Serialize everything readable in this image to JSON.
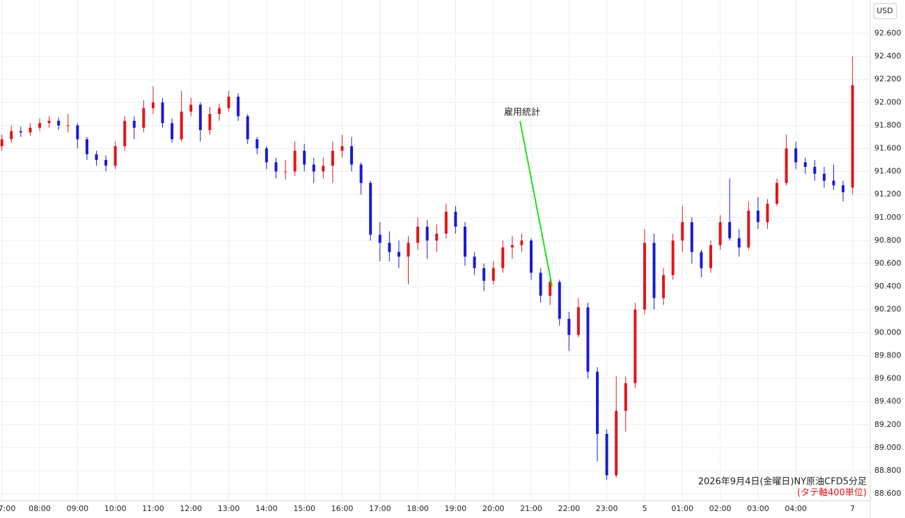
{
  "chart_data": {
    "type": "candlestick",
    "annotation": "雇用統計",
    "caption": "2026年9月4日(金曜日)NY原油CFD5分足",
    "caption_note": "(タテ軸400単位)",
    "currency": "USD",
    "up_color": "#e3141a",
    "down_color": "#1a1ad6",
    "grid": true,
    "ylim": [
      88.54,
      92.89
    ],
    "yticks": [
      {
        "value": 88.6,
        "label": "88.600"
      },
      {
        "value": 88.8,
        "label": "88.800"
      },
      {
        "value": 89,
        "label": "89.000"
      },
      {
        "value": 89.2,
        "label": "89.200"
      },
      {
        "value": 89.4,
        "label": "89.400"
      },
      {
        "value": 89.6,
        "label": "89.600"
      },
      {
        "value": 89.8,
        "label": "89.800"
      },
      {
        "value": 90,
        "label": "90.000"
      },
      {
        "value": 90.2,
        "label": "90.200"
      },
      {
        "value": 90.4,
        "label": "90.400"
      },
      {
        "value": 90.6,
        "label": "90.600"
      },
      {
        "value": 90.8,
        "label": "90.800"
      },
      {
        "value": 91,
        "label": "91.000"
      },
      {
        "value": 91.2,
        "label": "91.200"
      },
      {
        "value": 91.4,
        "label": "91.400"
      },
      {
        "value": 91.6,
        "label": "91.600"
      },
      {
        "value": 91.8,
        "label": "91.800"
      },
      {
        "value": 92,
        "label": "92.000"
      },
      {
        "value": 92.2,
        "label": "92.200"
      },
      {
        "value": 92.4,
        "label": "92.400"
      },
      {
        "value": 92.6,
        "label": "92.600"
      }
    ],
    "xlim": [
      -0.2,
      91.5
    ],
    "xticks": [
      {
        "value": 0,
        "label": "7:00"
      },
      {
        "value": 4,
        "label": "08:00"
      },
      {
        "value": 8,
        "label": "09:00"
      },
      {
        "value": 12,
        "label": "10:00"
      },
      {
        "value": 16,
        "label": "11:00"
      },
      {
        "value": 20,
        "label": "12:00"
      },
      {
        "value": 24,
        "label": "13:00"
      },
      {
        "value": 28,
        "label": "14:00"
      },
      {
        "value": 32,
        "label": "15:00"
      },
      {
        "value": 36,
        "label": "16:00"
      },
      {
        "value": 40,
        "label": "17:00"
      },
      {
        "value": 44,
        "label": "18:00"
      },
      {
        "value": 48,
        "label": "19:00"
      },
      {
        "value": 52,
        "label": "20:00"
      },
      {
        "value": 56,
        "label": "21:00"
      },
      {
        "value": 60,
        "label": "22:00"
      },
      {
        "value": 64,
        "label": "23:00"
      },
      {
        "value": 68,
        "label": "5"
      },
      {
        "value": 72,
        "label": "01:00"
      },
      {
        "value": 76,
        "label": "02:00"
      },
      {
        "value": 80,
        "label": "03:00"
      },
      {
        "value": 84,
        "label": "04:00"
      },
      {
        "value": 90,
        "label": "7"
      }
    ],
    "candles": [
      [
        91.62,
        91.72,
        91.58,
        91.68
      ],
      [
        91.68,
        91.8,
        91.65,
        91.75
      ],
      [
        91.75,
        91.79,
        91.7,
        91.74
      ],
      [
        91.74,
        91.82,
        91.71,
        91.78
      ],
      [
        91.78,
        91.86,
        91.75,
        91.82
      ],
      [
        91.82,
        91.88,
        91.78,
        91.84
      ],
      [
        91.84,
        91.87,
        91.76,
        91.8
      ],
      [
        91.8,
        91.9,
        91.74,
        91.8
      ],
      [
        91.8,
        91.82,
        91.6,
        91.68
      ],
      [
        91.68,
        91.7,
        91.5,
        91.55
      ],
      [
        91.55,
        91.58,
        91.45,
        91.5
      ],
      [
        91.5,
        91.54,
        91.4,
        91.45
      ],
      [
        91.45,
        91.66,
        91.42,
        91.62
      ],
      [
        91.62,
        91.88,
        91.58,
        91.84
      ],
      [
        91.84,
        91.88,
        91.68,
        91.78
      ],
      [
        91.78,
        92.02,
        91.74,
        91.95
      ],
      [
        91.95,
        92.14,
        91.9,
        92.0
      ],
      [
        92.0,
        92.04,
        91.78,
        91.82
      ],
      [
        91.82,
        91.86,
        91.65,
        91.68
      ],
      [
        91.68,
        92.1,
        91.66,
        91.92
      ],
      [
        91.92,
        92.04,
        91.88,
        91.98
      ],
      [
        91.98,
        92.0,
        91.66,
        91.76
      ],
      [
        91.76,
        91.96,
        91.72,
        91.9
      ],
      [
        91.9,
        91.99,
        91.84,
        91.95
      ],
      [
        91.95,
        92.1,
        91.92,
        92.05
      ],
      [
        92.05,
        92.08,
        91.84,
        91.88
      ],
      [
        91.88,
        91.9,
        91.64,
        91.68
      ],
      [
        91.68,
        91.7,
        91.55,
        91.6
      ],
      [
        91.6,
        91.62,
        91.42,
        91.48
      ],
      [
        91.48,
        91.52,
        91.34,
        91.4
      ],
      [
        91.4,
        91.5,
        91.33,
        91.4
      ],
      [
        91.4,
        91.66,
        91.36,
        91.58
      ],
      [
        91.58,
        91.64,
        91.4,
        91.46
      ],
      [
        91.46,
        91.52,
        91.3,
        91.4
      ],
      [
        91.4,
        91.52,
        91.34,
        91.45
      ],
      [
        91.45,
        91.66,
        91.3,
        91.58
      ],
      [
        91.58,
        91.72,
        91.52,
        91.62
      ],
      [
        91.62,
        91.7,
        91.4,
        91.46
      ],
      [
        91.46,
        91.48,
        91.2,
        91.3
      ],
      [
        91.3,
        91.32,
        90.8,
        90.85
      ],
      [
        90.85,
        90.96,
        90.62,
        90.78
      ],
      [
        90.78,
        90.88,
        90.62,
        90.7
      ],
      [
        90.7,
        90.8,
        90.56,
        90.66
      ],
      [
        90.66,
        90.84,
        90.42,
        90.78
      ],
      [
        90.78,
        91.0,
        90.72,
        90.92
      ],
      [
        90.92,
        90.98,
        90.64,
        90.8
      ],
      [
        90.8,
        90.94,
        90.7,
        90.86
      ],
      [
        90.86,
        91.12,
        90.82,
        91.05
      ],
      [
        91.05,
        91.1,
        90.86,
        90.92
      ],
      [
        90.92,
        90.96,
        90.58,
        90.66
      ],
      [
        90.66,
        90.7,
        90.5,
        90.56
      ],
      [
        90.56,
        90.6,
        90.36,
        90.45
      ],
      [
        90.45,
        90.62,
        90.42,
        90.56
      ],
      [
        90.56,
        90.8,
        90.52,
        90.74
      ],
      [
        90.74,
        90.84,
        90.64,
        90.76
      ],
      [
        90.76,
        90.86,
        90.7,
        90.8
      ],
      [
        90.8,
        90.82,
        90.46,
        90.52
      ],
      [
        90.52,
        90.56,
        90.26,
        90.32
      ],
      [
        90.32,
        90.5,
        90.24,
        90.44
      ],
      [
        90.44,
        90.46,
        90.06,
        90.12
      ],
      [
        90.12,
        90.18,
        89.84,
        89.98
      ],
      [
        89.98,
        90.3,
        89.96,
        90.22
      ],
      [
        90.22,
        90.26,
        89.6,
        89.66
      ],
      [
        89.66,
        89.7,
        88.88,
        89.12
      ],
      [
        89.12,
        89.16,
        88.72,
        88.76
      ],
      [
        88.76,
        89.62,
        88.74,
        89.32
      ],
      [
        89.32,
        89.62,
        89.14,
        89.56
      ],
      [
        89.56,
        90.26,
        89.52,
        90.2
      ],
      [
        90.2,
        90.9,
        90.16,
        90.78
      ],
      [
        90.78,
        90.86,
        90.2,
        90.3
      ],
      [
        90.3,
        90.56,
        90.24,
        90.5
      ],
      [
        90.5,
        90.86,
        90.46,
        90.8
      ],
      [
        90.8,
        91.1,
        90.7,
        90.96
      ],
      [
        90.96,
        91.0,
        90.6,
        90.7
      ],
      [
        90.7,
        90.72,
        90.48,
        90.56
      ],
      [
        90.56,
        90.8,
        90.52,
        90.76
      ],
      [
        90.76,
        91.02,
        90.72,
        90.96
      ],
      [
        90.96,
        91.34,
        90.8,
        90.82
      ],
      [
        90.82,
        90.9,
        90.66,
        90.74
      ],
      [
        90.74,
        91.14,
        90.72,
        91.06
      ],
      [
        91.06,
        91.18,
        90.9,
        90.96
      ],
      [
        90.96,
        91.16,
        90.9,
        91.12
      ],
      [
        91.12,
        91.34,
        91.1,
        91.3
      ],
      [
        91.3,
        91.72,
        91.28,
        91.6
      ],
      [
        91.6,
        91.66,
        91.42,
        91.48
      ],
      [
        91.48,
        91.52,
        91.38,
        91.44
      ],
      [
        91.44,
        91.5,
        91.32,
        91.38
      ],
      [
        91.38,
        91.44,
        91.26,
        91.32
      ],
      [
        91.32,
        91.46,
        91.24,
        91.28
      ],
      [
        91.28,
        91.32,
        91.14,
        91.22
      ],
      [
        91.26,
        92.4,
        91.2,
        92.15
      ]
    ]
  }
}
